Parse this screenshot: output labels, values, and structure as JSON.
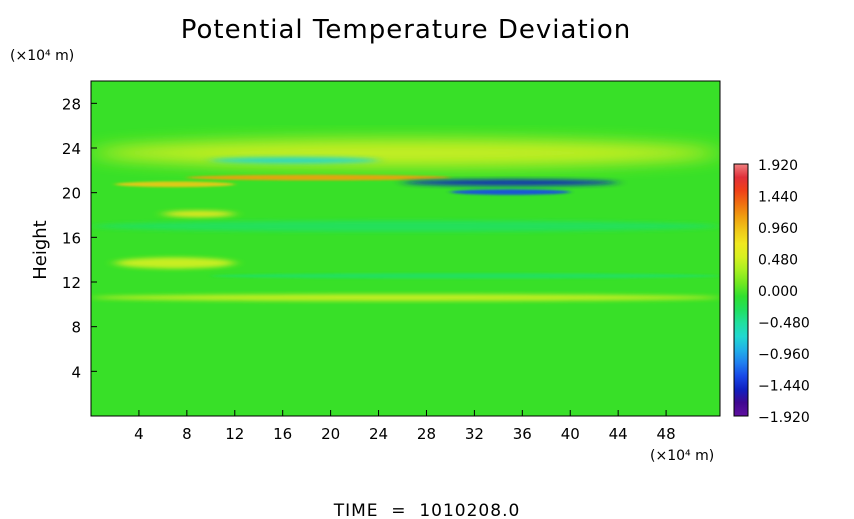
{
  "chart_data": {
    "type": "heatmap",
    "title": "Potential Temperature Deviation",
    "ylabel": "Height",
    "y_unit_label": "(×10⁴ m)",
    "x_unit_label": "(×10⁴ m)",
    "footer": "TIME  =  1010208.0",
    "xlim": [
      0,
      52.5
    ],
    "ylim": [
      0,
      30
    ],
    "xticks": [
      4,
      8,
      12,
      16,
      20,
      24,
      28,
      32,
      36,
      40,
      44,
      48
    ],
    "yticks": [
      4,
      8,
      12,
      16,
      20,
      24,
      28
    ],
    "colorbar": {
      "range": [
        -1.92,
        1.92
      ],
      "ticks": [
        "1.920",
        "1.440",
        "0.960",
        "0.480",
        "0.000",
        "−0.480",
        "−0.960",
        "−1.440",
        "−1.920"
      ],
      "colors": [
        "#f08080",
        "#e0303a",
        "#f04018",
        "#f07010",
        "#f0a010",
        "#f0c818",
        "#f0e820",
        "#d8f020",
        "#a8f020",
        "#70e820",
        "#30e030",
        "#20e060",
        "#20e0a0",
        "#20d8d0",
        "#20b0e8",
        "#2080f0",
        "#1848e8",
        "#1020c0",
        "#400890",
        "#6010a0"
      ]
    },
    "features": [
      {
        "label": "warm",
        "x": [
          0,
          52.5
        ],
        "y": [
          22.3,
          24.8
        ],
        "value": 0.5
      },
      {
        "label": "cool",
        "x": [
          10,
          24
        ],
        "y": [
          22.6,
          23.2
        ],
        "value": -0.7
      },
      {
        "label": "warm",
        "x": [
          8,
          30
        ],
        "y": [
          21.1,
          21.6
        ],
        "value": 1.2
      },
      {
        "label": "cool",
        "x": [
          26,
          44
        ],
        "y": [
          20.6,
          21.2
        ],
        "value": -1.5
      },
      {
        "label": "warm",
        "x": [
          2,
          12
        ],
        "y": [
          20.5,
          21.0
        ],
        "value": 1.0
      },
      {
        "label": "cool",
        "x": [
          30,
          40
        ],
        "y": [
          19.8,
          20.3
        ],
        "value": -1.3
      },
      {
        "label": "warm",
        "x": [
          6,
          12
        ],
        "y": [
          17.8,
          18.4
        ],
        "value": 0.7
      },
      {
        "label": "cool",
        "x": [
          0,
          52.5
        ],
        "y": [
          16.5,
          17.5
        ],
        "value": -0.3
      },
      {
        "label": "warm",
        "x": [
          2,
          12
        ],
        "y": [
          13.2,
          14.2
        ],
        "value": 0.6
      },
      {
        "label": "cool",
        "x": [
          10,
          52.5
        ],
        "y": [
          12.3,
          12.8
        ],
        "value": -0.4
      },
      {
        "label": "warm",
        "x": [
          0,
          52.5
        ],
        "y": [
          10.3,
          10.9
        ],
        "value": 0.6
      }
    ]
  }
}
